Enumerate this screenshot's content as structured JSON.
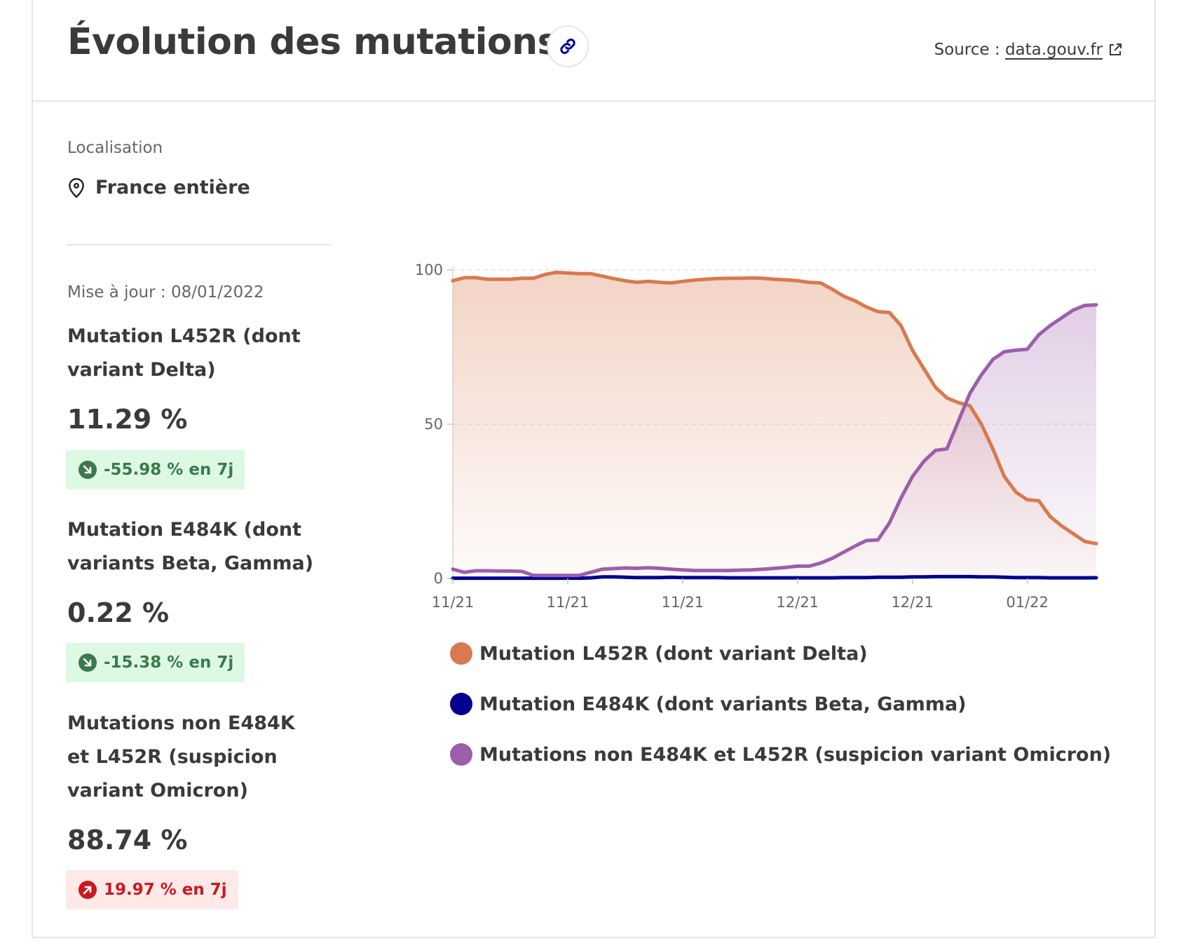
{
  "header": {
    "title": "Évolution des mutations",
    "source_prefix": "Source : ",
    "source_link": "data.gouv.fr"
  },
  "sidebar": {
    "location_label": "Localisation",
    "location_value": "France entière",
    "updated": "Mise à jour : 08/01/2022",
    "metrics": [
      {
        "name": "Mutation L452R (dont variant Delta)",
        "value": "11.29 %",
        "change": "-55.98 % en 7j",
        "trend": "down"
      },
      {
        "name": "Mutation E484K (dont variants Beta, Gamma)",
        "value": "0.22 %",
        "change": "-15.38 % en 7j",
        "trend": "down"
      },
      {
        "name": "Mutations non E484K et L452R (suspicion variant Omicron)",
        "value": "88.74 %",
        "change": "19.97 % en 7j",
        "trend": "up"
      }
    ]
  },
  "colors": {
    "delta": "#d9794f",
    "beta_gamma": "#000091",
    "omicron": "#9d5eab",
    "badge_down_bg": "#ddf9e4",
    "badge_up_bg": "#fee9e9"
  },
  "chart_data": {
    "type": "area",
    "y_ticks": [
      "0",
      "50",
      "100"
    ],
    "ylim": [
      0,
      100
    ],
    "x_tick_labels": [
      "11/21",
      "11/21",
      "11/21",
      "12/21",
      "12/21",
      "01/22"
    ],
    "x_tick_index": [
      0,
      10,
      20,
      30,
      40,
      50
    ],
    "x_count": 57,
    "grid": true,
    "legend_position": "bottom",
    "series": [
      {
        "name": "Mutation L452R (dont variant Delta)",
        "color": "#d9794f",
        "fill": true,
        "values": [
          96.5,
          97.5,
          97.5,
          97,
          97,
          97,
          97.3,
          97.3,
          98.5,
          99.2,
          99,
          98.8,
          98.8,
          98,
          97.2,
          96.5,
          96,
          96.3,
          96,
          95.8,
          96.3,
          96.7,
          97,
          97.2,
          97.3,
          97.3,
          97.4,
          97.3,
          97,
          96.8,
          96.5,
          96,
          95.8,
          93.8,
          91.5,
          90,
          88,
          86.5,
          86.2,
          82,
          74,
          68,
          62,
          58.5,
          57,
          56,
          50,
          42,
          33,
          28,
          25.5,
          25.2,
          20,
          17,
          14.5,
          12,
          11.3
        ]
      },
      {
        "name": "Mutation E484K (dont variants Beta, Gamma)",
        "color": "#000091",
        "fill": false,
        "values": [
          0.1,
          0.1,
          0.1,
          0.1,
          0.1,
          0.1,
          0.1,
          0.1,
          0.1,
          0.1,
          0.1,
          0.1,
          0.2,
          0.5,
          0.5,
          0.4,
          0.3,
          0.3,
          0.3,
          0.4,
          0.3,
          0.3,
          0.3,
          0.3,
          0.2,
          0.2,
          0.2,
          0.2,
          0.2,
          0.2,
          0.2,
          0.2,
          0.2,
          0.2,
          0.3,
          0.3,
          0.3,
          0.4,
          0.4,
          0.4,
          0.5,
          0.5,
          0.6,
          0.6,
          0.6,
          0.6,
          0.5,
          0.5,
          0.4,
          0.3,
          0.3,
          0.3,
          0.2,
          0.2,
          0.2,
          0.2,
          0.22
        ]
      },
      {
        "name": "Mutations non E484K et L452R (suspicion variant Omicron)",
        "color": "#9d5eab",
        "fill": true,
        "values": [
          3,
          2,
          2.5,
          2.5,
          2.4,
          2.4,
          2.3,
          1,
          1,
          1,
          1,
          1,
          2,
          3,
          3.2,
          3.4,
          3.3,
          3.5,
          3.3,
          3,
          2.8,
          2.6,
          2.6,
          2.6,
          2.6,
          2.7,
          2.8,
          3,
          3.3,
          3.6,
          4,
          4,
          5,
          6.5,
          8.5,
          10.5,
          12.3,
          12.5,
          18,
          26,
          33,
          38,
          41.5,
          42,
          51,
          60,
          66,
          71,
          73.5,
          74,
          74.3,
          79,
          82,
          84.5,
          87,
          88.5,
          88.7
        ]
      }
    ]
  }
}
